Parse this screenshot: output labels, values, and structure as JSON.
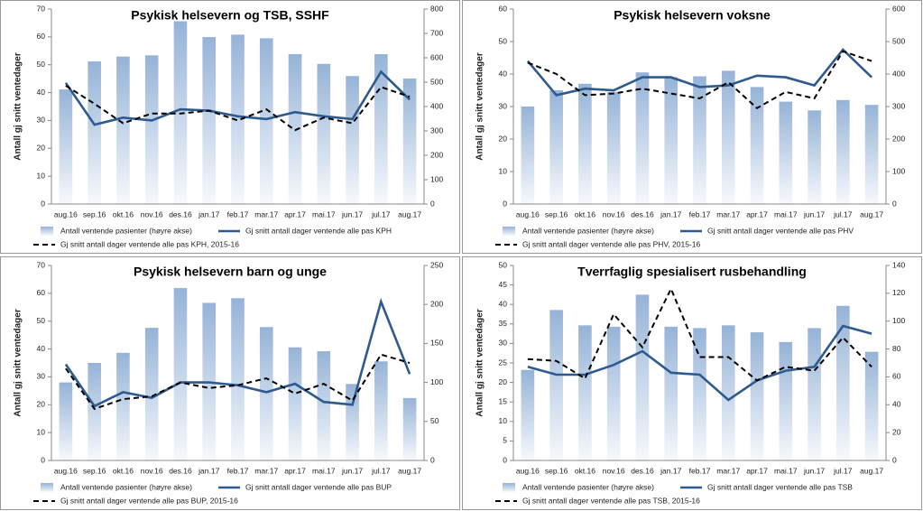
{
  "chart_data": [
    {
      "type": "bar_line",
      "title": "Psykisk helsevern og TSB, SSHF",
      "y_label": "Antall gj snitt ventedager",
      "categories": [
        "aug.16",
        "sep.16",
        "okt.16",
        "nov.16",
        "des.16",
        "jan.17",
        "feb.17",
        "mar.17",
        "apr.17",
        "mai.17",
        "jun.17",
        "jul.17",
        "aug.17"
      ],
      "ylim": [
        0,
        70
      ],
      "yticks": [
        0,
        10,
        20,
        30,
        40,
        50,
        60,
        70
      ],
      "y2lim": [
        0,
        800
      ],
      "y2ticks": [
        0,
        100,
        200,
        300,
        400,
        500,
        600,
        700,
        800
      ],
      "series": [
        {
          "name": "Antall ventende pasienter (høyre akse)",
          "kind": "bar",
          "axis": "y2",
          "color": "#95b3d7",
          "values": [
            470,
            585,
            605,
            610,
            750,
            685,
            695,
            680,
            615,
            575,
            525,
            615,
            515
          ]
        },
        {
          "name": "Gj snitt antall dager ventende alle pas KPH",
          "kind": "line",
          "color": "#2e5a8e",
          "values": [
            43.5,
            28.5,
            31,
            30,
            34,
            33.5,
            31.5,
            30.5,
            33,
            31.5,
            30.5,
            47.5,
            37.5
          ]
        },
        {
          "name": "Gj snitt antall dager ventende alle pas KPH, 2015-16",
          "kind": "line",
          "dash": true,
          "color": "#000000",
          "values": [
            42.5,
            36,
            29,
            32.5,
            32.5,
            33.5,
            30,
            34,
            26.5,
            31,
            29,
            42,
            38.5
          ]
        }
      ]
    },
    {
      "type": "bar_line",
      "title": "Psykisk helsevern voksne",
      "y_label": "Antall gj snitt ventedager",
      "categories": [
        "aug.16",
        "sep.16",
        "okt.16",
        "nov.16",
        "des.16",
        "jan.17",
        "feb.17",
        "mar.17",
        "apr.17",
        "mai.17",
        "jun.17",
        "jul.17",
        "aug.17"
      ],
      "ylim": [
        0,
        60
      ],
      "yticks": [
        0,
        10,
        20,
        30,
        40,
        50,
        60
      ],
      "y2lim": [
        0,
        600
      ],
      "y2ticks": [
        0,
        100,
        200,
        300,
        400,
        500,
        600
      ],
      "series": [
        {
          "name": "Antall ventende pasienter (høyre akse)",
          "kind": "bar",
          "axis": "y2",
          "color": "#95b3d7",
          "values": [
            300,
            350,
            370,
            345,
            405,
            390,
            393,
            410,
            360,
            315,
            288,
            320,
            305
          ]
        },
        {
          "name": "Gj snitt antall dager ventende alle pas PHV",
          "kind": "line",
          "color": "#2e5a8e",
          "values": [
            44,
            33.5,
            35.5,
            35,
            39,
            39,
            36,
            36.5,
            39.5,
            39,
            36.5,
            47.5,
            39
          ]
        },
        {
          "name": "Gj snitt antall dager ventende alle pas PHV, 2015-16",
          "kind": "line",
          "dash": true,
          "color": "#000000",
          "values": [
            43.5,
            40,
            33.5,
            34,
            35.5,
            34,
            32.5,
            37.5,
            29.5,
            34.5,
            32.5,
            47,
            44
          ]
        }
      ]
    },
    {
      "type": "bar_line",
      "title": "Psykisk helsevern barn og unge",
      "y_label": "Antall gj snitt ventedager",
      "categories": [
        "aug.16",
        "sep.16",
        "okt.16",
        "nov.16",
        "des.16",
        "jan.17",
        "feb.17",
        "mar.17",
        "apr.17",
        "mai.17",
        "jun.17",
        "jul.17",
        "aug.17"
      ],
      "ylim": [
        0,
        70
      ],
      "yticks": [
        0,
        10,
        20,
        30,
        40,
        50,
        60,
        70
      ],
      "y2lim": [
        0,
        250
      ],
      "y2ticks": [
        0,
        50,
        100,
        150,
        200,
        250
      ],
      "series": [
        {
          "name": "Antall ventende pasienter (høyre akse)",
          "kind": "bar",
          "axis": "y2",
          "color": "#95b3d7",
          "values": [
            100,
            125,
            138,
            170,
            221,
            202,
            208,
            171,
            145,
            140,
            98,
            127,
            80
          ]
        },
        {
          "name": "Gj snitt antall dager ventende alle pas BUP",
          "kind": "line",
          "color": "#2e5a8e",
          "values": [
            34.5,
            19.5,
            24.5,
            22.5,
            28,
            28,
            27,
            24.5,
            27.5,
            21,
            20,
            57,
            31
          ]
        },
        {
          "name": "Gj snitt antall dager ventende alle pas BUP, 2015-16",
          "kind": "line",
          "dash": true,
          "color": "#000000",
          "values": [
            33,
            18.5,
            22,
            23,
            28,
            26,
            27,
            29.5,
            24,
            27.5,
            21.5,
            38,
            35
          ]
        }
      ]
    },
    {
      "type": "bar_line",
      "title": "Tverrfaglig spesialisert rusbehandling",
      "y_label": "Antall gj snitt ventedager",
      "categories": [
        "aug.16",
        "sep.16",
        "okt.16",
        "nov.16",
        "des.16",
        "jan.17",
        "feb.17",
        "mar.17",
        "apr.17",
        "mai.17",
        "jun.17",
        "jul.17",
        "aug.17"
      ],
      "ylim": [
        0,
        50
      ],
      "yticks": [
        0,
        5,
        10,
        15,
        20,
        25,
        30,
        35,
        40,
        45,
        50
      ],
      "y2lim": [
        0,
        140
      ],
      "y2ticks": [
        0,
        20,
        40,
        60,
        80,
        100,
        120,
        140
      ],
      "series": [
        {
          "name": "Antall ventende pasienter (høyre akse)",
          "kind": "bar",
          "axis": "y2",
          "color": "#95b3d7",
          "values": [
            65,
            108,
            97,
            96,
            119,
            96,
            95,
            97,
            92,
            85,
            95,
            111,
            78
          ]
        },
        {
          "name": "Gj snitt antall dager ventende alle pas TSB",
          "kind": "line",
          "color": "#2e5a8e",
          "values": [
            24,
            22,
            22,
            24.5,
            28,
            22.5,
            22,
            15.5,
            20.5,
            23,
            24,
            34.5,
            32.5
          ]
        },
        {
          "name": "Gj snitt antall dager ventende alle pas TSB, 2015-16",
          "kind": "line",
          "dash": true,
          "color": "#000000",
          "values": [
            26,
            25.5,
            21,
            37.5,
            29,
            44,
            26.5,
            26.5,
            20.5,
            24,
            23,
            31.5,
            24
          ]
        }
      ]
    }
  ]
}
